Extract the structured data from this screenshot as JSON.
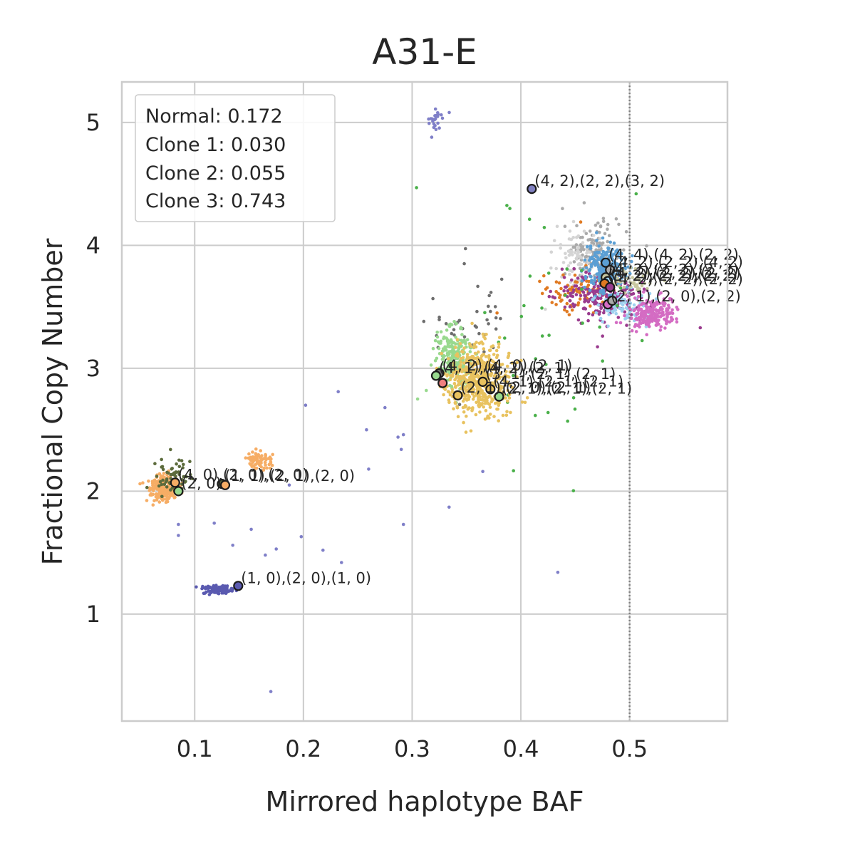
{
  "chart_data": {
    "type": "scatter",
    "title": "A31-E",
    "xlabel": "Mirrored haplotype BAF",
    "ylabel": "Fractional Copy Number",
    "xlim": [
      0.033,
      0.59
    ],
    "ylim": [
      0.13,
      5.33
    ],
    "xticks": [
      0.1,
      0.2,
      0.3,
      0.4,
      0.5
    ],
    "yticks": [
      1,
      2,
      3,
      4,
      5
    ],
    "xtick_labels": [
      "0.1",
      "0.2",
      "0.3",
      "0.4",
      "0.5"
    ],
    "ytick_labels": [
      "1",
      "2",
      "3",
      "4",
      "5"
    ],
    "grid": true,
    "reference_line": {
      "x": 0.5,
      "style": "dotted",
      "color": "#808080"
    },
    "legend": {
      "placement": "top-left",
      "entries": [
        "Normal: 0.172",
        "Clone 1: 0.030",
        "Clone 2: 0.055",
        "Clone 3: 0.743"
      ]
    },
    "clusters": [
      {
        "color": "#aaaaaa",
        "cx": 0.465,
        "cy": 3.95,
        "sx": 0.013,
        "sy": 0.12,
        "n": 130
      },
      {
        "color": "#d4d4d4",
        "cx": 0.455,
        "cy": 3.9,
        "sx": 0.012,
        "sy": 0.12,
        "n": 90
      },
      {
        "color": "#e07a22",
        "cx": 0.455,
        "cy": 3.62,
        "sx": 0.018,
        "sy": 0.07,
        "n": 90
      },
      {
        "color": "#9a3b8e",
        "cx": 0.475,
        "cy": 3.58,
        "sx": 0.02,
        "sy": 0.1,
        "n": 230
      },
      {
        "color": "#5b9fd4",
        "cx": 0.478,
        "cy": 3.82,
        "sx": 0.009,
        "sy": 0.1,
        "n": 230
      },
      {
        "color": "#9ed1ef",
        "cx": 0.495,
        "cy": 3.5,
        "sx": 0.013,
        "sy": 0.06,
        "n": 80
      },
      {
        "color": "#d46cc3",
        "cx": 0.52,
        "cy": 3.44,
        "sx": 0.011,
        "sy": 0.06,
        "n": 210
      },
      {
        "color": "#c8c8a0",
        "cx": 0.505,
        "cy": 3.72,
        "sx": 0.01,
        "sy": 0.05,
        "n": 40
      },
      {
        "color": "#4ab04a",
        "cx": 0.41,
        "cy": 3.25,
        "sx": 0.04,
        "sy": 0.55,
        "n": 35
      },
      {
        "color": "#6e6e6e",
        "cx": 0.355,
        "cy": 3.35,
        "sx": 0.018,
        "sy": 0.22,
        "n": 40
      },
      {
        "color": "#98d98e",
        "cx": 0.338,
        "cy": 3.1,
        "sx": 0.008,
        "sy": 0.12,
        "n": 230
      },
      {
        "color": "#e8c25f",
        "cx": 0.362,
        "cy": 2.9,
        "sx": 0.015,
        "sy": 0.14,
        "n": 500
      },
      {
        "color": "#f6ad65",
        "cx": 0.072,
        "cy": 2.02,
        "sx": 0.007,
        "sy": 0.05,
        "n": 240
      },
      {
        "color": "#5c6b3c",
        "cx": 0.078,
        "cy": 2.12,
        "sx": 0.008,
        "sy": 0.08,
        "n": 60
      },
      {
        "color": "#f6ad65",
        "cx": 0.158,
        "cy": 2.24,
        "sx": 0.006,
        "sy": 0.04,
        "n": 80
      },
      {
        "color": "#5a5ab0",
        "cx": 0.122,
        "cy": 1.2,
        "sx": 0.007,
        "sy": 0.018,
        "n": 110
      },
      {
        "color": "#7f7fc8",
        "cx": 0.322,
        "cy": 5.02,
        "sx": 0.004,
        "sy": 0.05,
        "n": 22
      }
    ],
    "scatter_extra": [
      {
        "x": 0.085,
        "y": 1.64,
        "color": "#7f7fc8"
      },
      {
        "x": 0.085,
        "y": 1.73,
        "color": "#7f7fc8"
      },
      {
        "x": 0.118,
        "y": 1.74,
        "color": "#7f7fc8"
      },
      {
        "x": 0.135,
        "y": 1.56,
        "color": "#7f7fc8"
      },
      {
        "x": 0.152,
        "y": 1.69,
        "color": "#7f7fc8"
      },
      {
        "x": 0.165,
        "y": 1.48,
        "color": "#7f7fc8"
      },
      {
        "x": 0.175,
        "y": 1.53,
        "color": "#7f7fc8"
      },
      {
        "x": 0.198,
        "y": 1.63,
        "color": "#7f7fc8"
      },
      {
        "x": 0.202,
        "y": 2.7,
        "color": "#7f7fc8"
      },
      {
        "x": 0.218,
        "y": 1.52,
        "color": "#7f7fc8"
      },
      {
        "x": 0.232,
        "y": 2.81,
        "color": "#7f7fc8"
      },
      {
        "x": 0.258,
        "y": 2.5,
        "color": "#7f7fc8"
      },
      {
        "x": 0.275,
        "y": 2.68,
        "color": "#7f7fc8"
      },
      {
        "x": 0.287,
        "y": 2.44,
        "color": "#7f7fc8"
      },
      {
        "x": 0.292,
        "y": 2.46,
        "color": "#7f7fc8"
      },
      {
        "x": 0.29,
        "y": 2.34,
        "color": "#7f7fc8"
      },
      {
        "x": 0.26,
        "y": 2.18,
        "color": "#7f7fc8"
      },
      {
        "x": 0.292,
        "y": 1.73,
        "color": "#7f7fc8"
      },
      {
        "x": 0.334,
        "y": 1.87,
        "color": "#7f7fc8"
      },
      {
        "x": 0.365,
        "y": 2.16,
        "color": "#7f7fc8"
      },
      {
        "x": 0.434,
        "y": 1.34,
        "color": "#7f7fc8"
      },
      {
        "x": 0.17,
        "y": 0.37,
        "color": "#7f7fc8"
      },
      {
        "x": 0.235,
        "y": 1.42,
        "color": "#7f7fc8"
      },
      {
        "x": 0.187,
        "y": 2.05,
        "color": "#7f7fc8"
      },
      {
        "x": 0.318,
        "y": 4.88,
        "color": "#7f7fc8"
      },
      {
        "x": 0.304,
        "y": 4.47,
        "color": "#4ab04a"
      },
      {
        "x": 0.506,
        "y": 4.42,
        "color": "#4ab04a"
      },
      {
        "x": 0.443,
        "y": 2.57,
        "color": "#4ab04a"
      },
      {
        "x": 0.425,
        "y": 2.64,
        "color": "#4ab04a"
      },
      {
        "x": 0.305,
        "y": 2.75,
        "color": "#98d98e"
      },
      {
        "x": 0.313,
        "y": 2.82,
        "color": "#98d98e"
      },
      {
        "x": 0.565,
        "y": 3.33,
        "color": "#9a3b8e"
      },
      {
        "x": 0.455,
        "y": 4.19,
        "color": "#e07a22"
      }
    ],
    "markers": [
      {
        "x": 0.41,
        "y": 4.46,
        "color": "#8080c0",
        "label": "(4, 2),(2, 2),(3, 2)"
      },
      {
        "x": 0.478,
        "y": 3.86,
        "color": "#5b9fd4",
        "label": "(4, 4),(4, 2),(2, 2)"
      },
      {
        "x": 0.482,
        "y": 3.8,
        "color": "#aaaaaa",
        "label": "(4, 2),(2, 2),(4, 2)"
      },
      {
        "x": 0.478,
        "y": 3.74,
        "color": "#c8c8a0",
        "label": "(4, 2),(2, 2),(2, 2)"
      },
      {
        "x": 0.48,
        "y": 3.71,
        "color": "#9ed1ef",
        "label": "(4, 2),(2, 2),(2, 2)"
      },
      {
        "x": 0.477,
        "y": 3.69,
        "color": "#e07a22",
        "label": "(3, 2),(2, 2),(2, 2)"
      },
      {
        "x": 0.482,
        "y": 3.66,
        "color": "#9a3b8e",
        "label": "(4, 2),(2, 2),(2, 2)"
      },
      {
        "x": 0.48,
        "y": 3.52,
        "color": "#d46cc3",
        "label": "(2, 1),(2, 0),(2, 2)"
      },
      {
        "x": 0.484,
        "y": 3.55,
        "color": "#aaaaaa",
        "label": ""
      },
      {
        "x": 0.325,
        "y": 2.96,
        "color": "#6e6e6e",
        "label": "(4, 2),(4, 0),(2, 1)"
      },
      {
        "x": 0.322,
        "y": 2.94,
        "color": "#98d98e",
        "label": "(4, 1),(4, 2),(2, 1)"
      },
      {
        "x": 0.328,
        "y": 2.88,
        "color": "#f08080",
        "label": ""
      },
      {
        "x": 0.365,
        "y": 2.89,
        "color": "#e8c25f",
        "label": "(3, 1),(2, 1),(2, 1)"
      },
      {
        "x": 0.372,
        "y": 2.83,
        "color": "#e8c25f",
        "label": "(4, 1),(2, 1),(2, 1)"
      },
      {
        "x": 0.342,
        "y": 2.78,
        "color": "#e8c25f",
        "label": "(2, 1),(2, 0),(2, 1)"
      },
      {
        "x": 0.38,
        "y": 2.77,
        "color": "#98d98e",
        "label": "(2, 1),(2, 1),(2, 1)"
      },
      {
        "x": 0.082,
        "y": 2.07,
        "color": "#f6ad65",
        "label": "(4, 0),(2, 0),(2, 0)"
      },
      {
        "x": 0.085,
        "y": 2.0,
        "color": "#98d98e",
        "label": "(2, 0)"
      },
      {
        "x": 0.125,
        "y": 2.06,
        "color": "#5c6b3c",
        "label": "(1, 1),(2, 1),(2, 0)"
      },
      {
        "x": 0.128,
        "y": 2.05,
        "color": "#f6ad65",
        "label": ""
      },
      {
        "x": 0.14,
        "y": 1.23,
        "color": "#5a5ab0",
        "label": "(1, 0),(2, 0),(1, 0)"
      }
    ]
  }
}
